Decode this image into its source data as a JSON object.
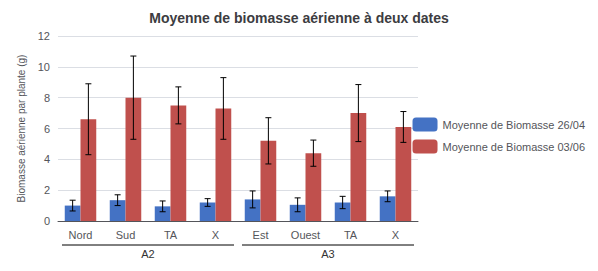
{
  "chart_data": {
    "type": "bar",
    "title": "Moyenne de biomasse aérienne à deux dates",
    "ylabel": "Biomasse aérienne par plante (g)",
    "categories": [
      "Nord",
      "Sud",
      "TA",
      "X",
      "Est",
      "Ouest",
      "TA",
      "X"
    ],
    "annotations": [
      "A2",
      "A3"
    ],
    "series": [
      {
        "name": "Moyenne de Biomasse 26/04",
        "color": "#4472C4",
        "values": [
          1.0,
          1.35,
          0.95,
          1.2,
          1.4,
          1.05,
          1.2,
          1.6
        ],
        "errors": [
          0.35,
          0.35,
          0.35,
          0.25,
          0.55,
          0.45,
          0.4,
          0.35
        ]
      },
      {
        "name": "Moyenne de Biomasse 03/06",
        "color": "#C0504D",
        "values": [
          6.6,
          8.0,
          7.5,
          7.3,
          5.2,
          4.4,
          7.0,
          6.1
        ],
        "errors": [
          2.3,
          2.7,
          1.2,
          2.0,
          1.5,
          0.85,
          1.85,
          1.0
        ]
      }
    ],
    "ylim": [
      0,
      12
    ],
    "yticks": [
      0,
      2,
      4,
      6,
      8,
      10,
      12
    ],
    "grid": true,
    "legend": "right"
  }
}
